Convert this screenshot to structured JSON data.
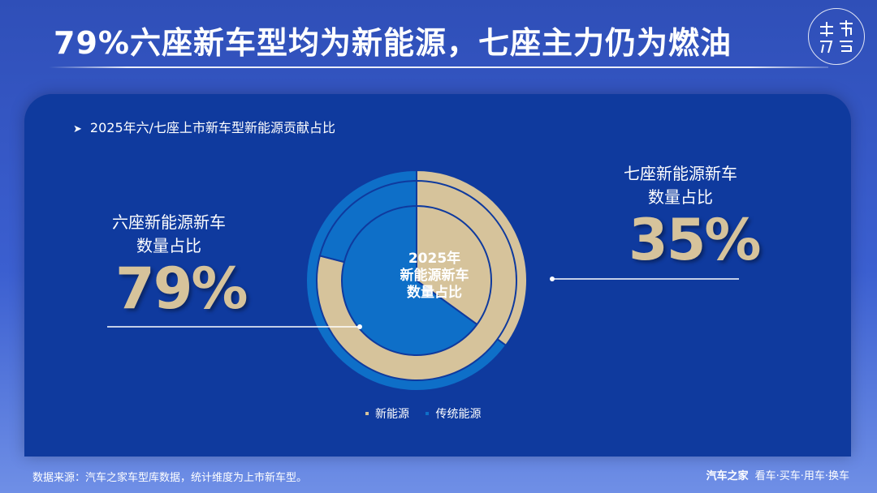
{
  "header": {
    "title": "79%六座新车型均为新能源，七座主力仍为燃油",
    "logo_text": "车市物语"
  },
  "panel": {
    "subtitle": "2025年六/七座上市新车型新能源贡献占比",
    "left_label_line1": "六座新能源新车",
    "left_label_line2": "数量占比",
    "left_value": "79%",
    "right_label_line1": "七座新能源新车",
    "right_label_line2": "数量占比",
    "right_value": "35%",
    "center_line1": "2025年",
    "center_line2": "新能源新车",
    "center_line3": "数量占比"
  },
  "legend": {
    "nev": "新能源",
    "traditional": "传统能源"
  },
  "footer": {
    "source": "数据来源：汽车之家车型库数据，统计维度为上市新车型。",
    "brand": "汽车之家",
    "slogan": "看车·买车·用车·换车"
  },
  "colors": {
    "nev": "#d6c39b",
    "traditional": "#0e6fc8",
    "panel": "#0f3a9e",
    "accent_text": "#d6c39b"
  },
  "chart_data": {
    "type": "pie",
    "title": "2025年六/七座上市新车型新能源贡献占比",
    "categories": [
      "新能源",
      "传统能源"
    ],
    "series": [
      {
        "name": "七座新能源新车数量占比",
        "values": [
          35,
          65
        ]
      },
      {
        "name": "六座新能源新车数量占比",
        "values": [
          79,
          21
        ]
      }
    ]
  }
}
